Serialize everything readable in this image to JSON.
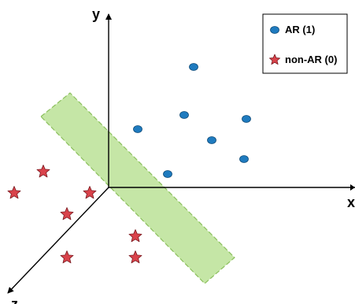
{
  "axes": {
    "y_label": "y",
    "x_label": "x",
    "z_label": "z"
  },
  "legend": {
    "ar_label": "AR (1)",
    "non_ar_label": "non-AR (0)"
  },
  "colors": {
    "ar_fill": "#1f7bbf",
    "non_ar_fill": "#d9434b",
    "plane_fill": "#c5e6a6",
    "plane_stroke": "#8bbf5c",
    "axis": "#000000"
  },
  "chart_data": {
    "type": "scatter",
    "classes": [
      {
        "name": "AR (1)",
        "marker": "ellipse",
        "count": 7
      },
      {
        "name": "non-AR (0)",
        "marker": "star",
        "count": 7
      }
    ]
  }
}
